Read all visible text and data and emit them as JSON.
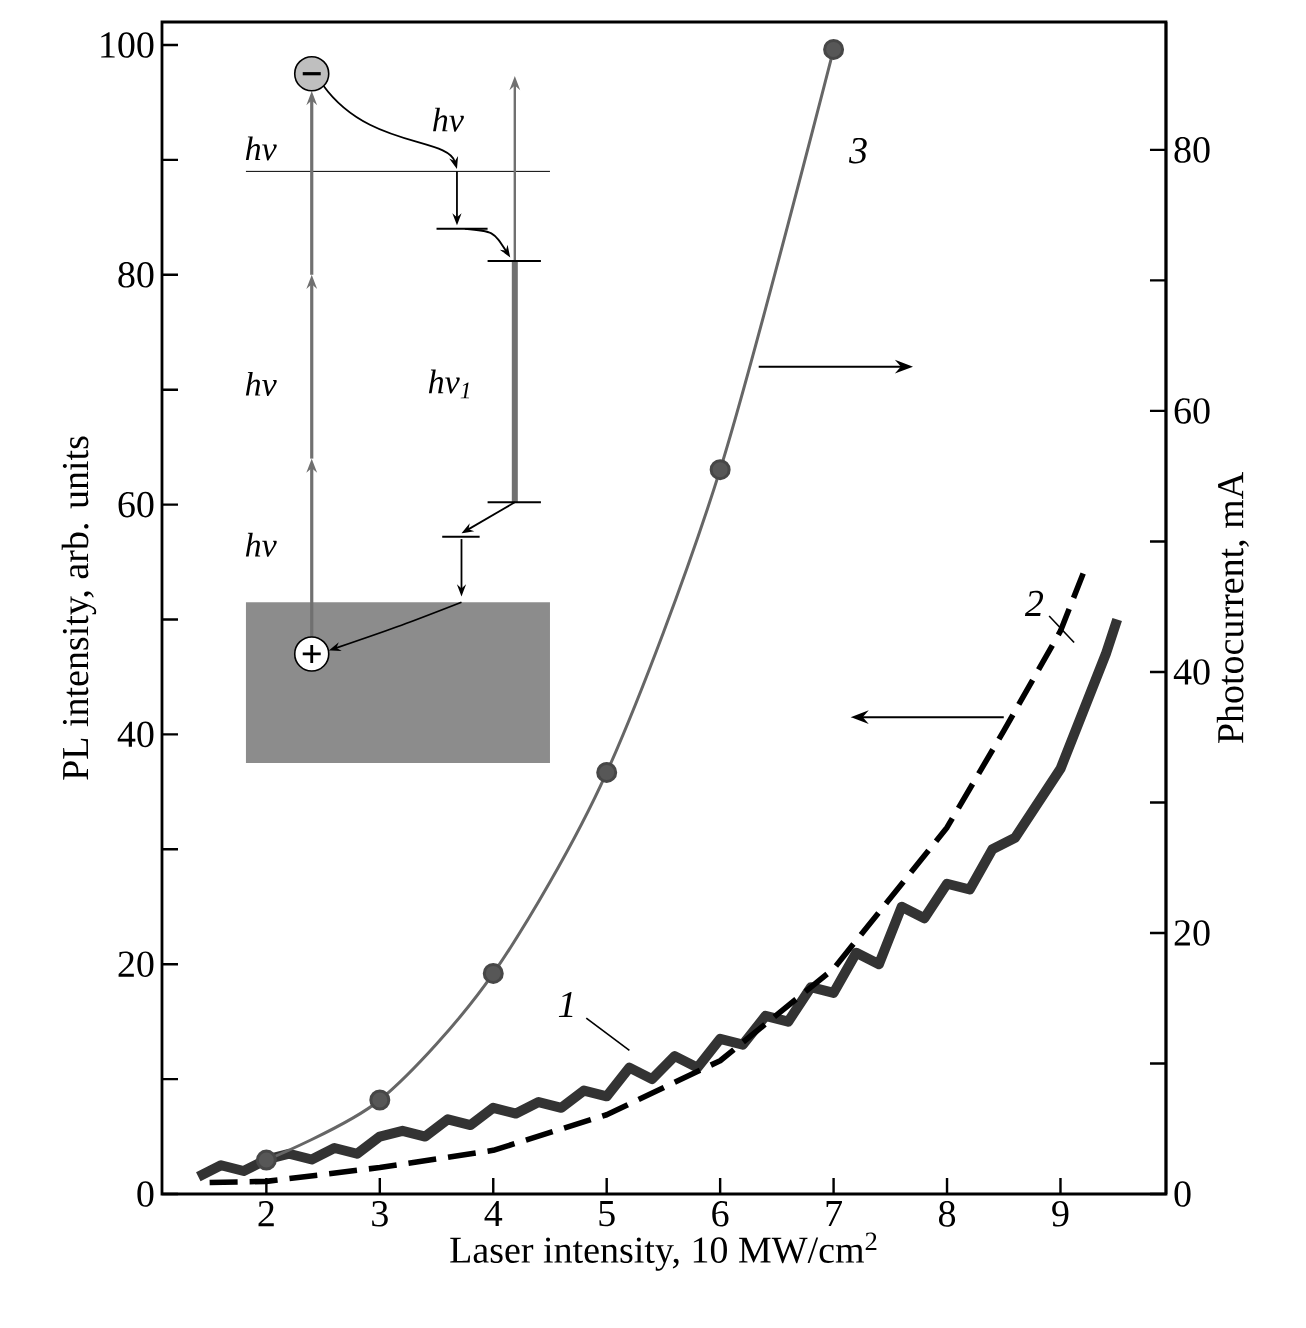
{
  "chart_data": {
    "type": "line",
    "xlabel": "Laser intensity, 10 MW/cm$^{2}$",
    "ylabel": "PL intensity, arb. units",
    "y2label": "Photocurrent, mA",
    "xlim": [
      1.08,
      9.93
    ],
    "ylim": [
      0,
      102
    ],
    "y2lim": [
      0,
      89.8
    ],
    "xticks": [
      2,
      3,
      4,
      5,
      6,
      7,
      8,
      9
    ],
    "yticks": [
      0,
      {
        "value": 10,
        "label": null
      },
      20,
      {
        "value": 30,
        "label": null
      },
      40,
      {
        "value": 50,
        "label": null
      },
      60,
      {
        "value": 70,
        "label": null
      },
      80,
      {
        "value": 90,
        "label": null
      },
      100
    ],
    "y2ticks": [
      0,
      {
        "value": 10,
        "label": null
      },
      20,
      {
        "value": 30,
        "label": null
      },
      40,
      {
        "value": 50,
        "label": null
      },
      60,
      {
        "value": 70,
        "label": null
      },
      80
    ],
    "grid": false,
    "series": [
      {
        "color": "#333333",
        "marker": "none",
        "x": [
          1.4,
          1.6,
          1.8,
          2.0,
          2.2,
          2.4,
          2.6,
          2.8,
          3.0,
          3.2,
          3.4,
          3.6,
          3.8,
          4.0,
          4.2,
          4.4,
          4.6,
          4.8,
          5.0,
          5.2,
          5.4,
          5.6,
          5.8,
          6.0,
          6.2,
          6.4,
          6.6,
          6.8,
          7.0,
          7.2,
          7.4,
          7.6,
          7.8,
          8.0,
          8.2,
          8.4,
          8.6,
          8.8,
          9.0,
          9.2,
          9.4,
          9.5
        ],
        "values": [
          1.5,
          2.5,
          2,
          3,
          3.5,
          3,
          4,
          3.5,
          5,
          5.5,
          5,
          6.5,
          6,
          7.5,
          7,
          8,
          7.5,
          9,
          8.5,
          11,
          10,
          12,
          11,
          13.5,
          13,
          15.5,
          15,
          18,
          17.5,
          21,
          20,
          25,
          24,
          27,
          26.5,
          30,
          31,
          34,
          37,
          42,
          47,
          50
        ]
      },
      {
        "color": "#000000",
        "marker": "none",
        "line_style": "dashed",
        "x": [
          1.5,
          2,
          3,
          4,
          5,
          6,
          7,
          8,
          8.5,
          9,
          9.2
        ],
        "values": [
          1,
          1.1,
          2.3,
          3.8,
          6.9,
          11.6,
          19.6,
          31.9,
          40.3,
          49,
          54
        ]
      },
      {
        "color": "#666666",
        "marker": "circle",
        "axis": "y2",
        "x": [
          2,
          3,
          4,
          5,
          6,
          7
        ],
        "values": [
          2.6,
          7.2,
          16.9,
          32.3,
          55.5,
          87.7
        ]
      }
    ],
    "annotations": [
      "1",
      "2",
      "3",
      "hν",
      "hν",
      "hν",
      "hν",
      "hν$_{1}$"
    ]
  }
}
